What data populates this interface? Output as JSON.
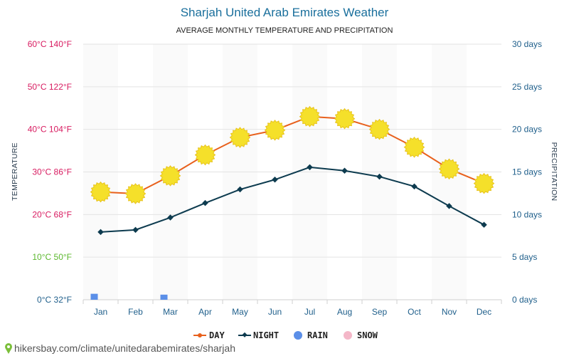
{
  "header": {
    "title": "Sharjah United Arab Emirates Weather",
    "subtitle": "AVERAGE MONTHLY TEMPERATURE AND PRECIPITATION"
  },
  "chart_data": {
    "type": "line",
    "title": "Sharjah United Arab Emirates Weather",
    "subtitle": "AVERAGE MONTHLY TEMPERATURE AND PRECIPITATION",
    "categories": [
      "Jan",
      "Feb",
      "Mar",
      "Apr",
      "May",
      "Jun",
      "Jul",
      "Aug",
      "Sep",
      "Oct",
      "Nov",
      "Dec"
    ],
    "ylabel": "TEMPERATURE",
    "y2label": "PRECIPITATION",
    "ylim": [
      0,
      60
    ],
    "y2lim": [
      0,
      30
    ],
    "y_ticks": [
      {
        "value": 60,
        "label": "60°C 140°F",
        "color": "#d81b60"
      },
      {
        "value": 50,
        "label": "50°C 122°F",
        "color": "#d81b60"
      },
      {
        "value": 40,
        "label": "40°C 104°F",
        "color": "#d81b60"
      },
      {
        "value": 30,
        "label": "30°C 86°F",
        "color": "#d81b60"
      },
      {
        "value": 20,
        "label": "20°C 68°F",
        "color": "#d81b60"
      },
      {
        "value": 10,
        "label": "10°C 50°F",
        "color": "#5cb82e"
      },
      {
        "value": 0,
        "label": "0°C 32°F",
        "color": "#1f5f8b"
      }
    ],
    "y2_ticks": [
      {
        "value": 30,
        "label": "30 days"
      },
      {
        "value": 25,
        "label": "25 days"
      },
      {
        "value": 20,
        "label": "20 days"
      },
      {
        "value": 15,
        "label": "15 days"
      },
      {
        "value": 10,
        "label": "10 days"
      },
      {
        "value": 5,
        "label": "5 days"
      },
      {
        "value": 0,
        "label": "0 days"
      }
    ],
    "series": [
      {
        "name": "DAY",
        "color": "#e8601c",
        "values": [
          25.3,
          24.9,
          29.1,
          34.0,
          38.1,
          39.8,
          43.0,
          42.5,
          40.0,
          35.8,
          30.7,
          27.3
        ]
      },
      {
        "name": "NIGHT",
        "color": "#0d3b4f",
        "values": [
          15.9,
          16.4,
          19.3,
          22.7,
          25.9,
          28.2,
          31.1,
          30.3,
          28.9,
          26.6,
          22.0,
          17.6
        ]
      },
      {
        "name": "RAIN",
        "color": "#5b8fe8",
        "axis": "right",
        "values": [
          0.7,
          0,
          0.6,
          0,
          0,
          0,
          0,
          0,
          0,
          0,
          0,
          0
        ]
      },
      {
        "name": "SNOW",
        "color": "#f4b7c8",
        "axis": "right",
        "values": [
          0,
          0,
          0,
          0,
          0,
          0,
          0,
          0,
          0,
          0,
          0,
          0
        ]
      }
    ],
    "grid": true,
    "legend_position": "bottom-center"
  },
  "footer": {
    "source": "hikersbay.com/climate/unitedarabemirates/sharjah"
  },
  "colors": {
    "title": "#1a6f9c",
    "grid": "#e3e3e3",
    "sun": "#f5e02a",
    "sun_outline": "#e8c41e"
  }
}
